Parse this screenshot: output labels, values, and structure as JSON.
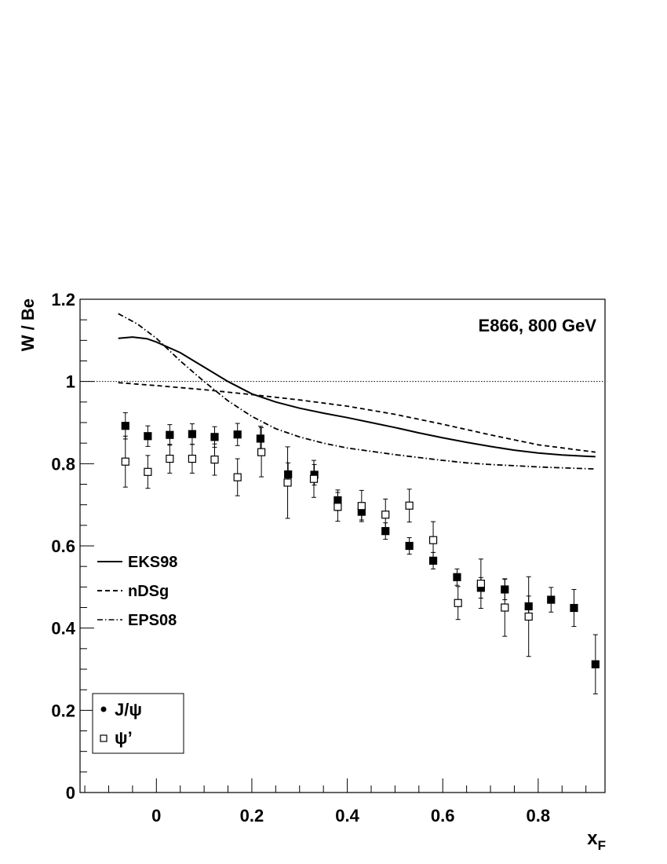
{
  "chart_data": {
    "type": "scatter",
    "title": "",
    "annotation": "E866, 800 GeV",
    "xlabel": "x",
    "xlabel_sub": "F",
    "ylabel": "W / Be",
    "xlim": [
      -0.16,
      0.94
    ],
    "ylim": [
      0,
      1.2
    ],
    "x_ticks": [
      "0",
      "0.2",
      "0.4",
      "0.6",
      "0.8"
    ],
    "y_ticks": [
      "0",
      "0.2",
      "0.4",
      "0.6",
      "0.8",
      "1",
      "1.2"
    ],
    "reference_line": 1.0,
    "grid": false,
    "series": [
      {
        "name": "J/ψ",
        "marker": "filled-square",
        "x": [
          -0.065,
          -0.018,
          0.028,
          0.075,
          0.122,
          0.17,
          0.218,
          0.276,
          0.331,
          0.38,
          0.43,
          0.48,
          0.53,
          0.58,
          0.63,
          0.68,
          0.73,
          0.78,
          0.827,
          0.875,
          0.92
        ],
        "y": [
          0.892,
          0.867,
          0.87,
          0.872,
          0.865,
          0.871,
          0.861,
          0.774,
          0.773,
          0.711,
          0.683,
          0.636,
          0.6,
          0.564,
          0.524,
          0.498,
          0.494,
          0.453,
          0.469,
          0.449,
          0.312
        ],
        "err": [
          0.032,
          0.025,
          0.025,
          0.025,
          0.025,
          0.027,
          0.03,
          0.028,
          0.025,
          0.025,
          0.02,
          0.02,
          0.02,
          0.02,
          0.02,
          0.025,
          0.025,
          0.025,
          0.03,
          0.045,
          0.072
        ]
      },
      {
        "name": "ψ’",
        "marker": "open-square",
        "x": [
          -0.065,
          -0.018,
          0.028,
          0.075,
          0.122,
          0.17,
          0.22,
          0.275,
          0.33,
          0.38,
          0.43,
          0.48,
          0.53,
          0.58,
          0.632,
          0.68,
          0.73,
          0.78
        ],
        "y": [
          0.805,
          0.78,
          0.812,
          0.812,
          0.81,
          0.767,
          0.828,
          0.754,
          0.763,
          0.695,
          0.697,
          0.676,
          0.698,
          0.614,
          0.461,
          0.508,
          0.45,
          0.428
        ],
        "err": [
          0.062,
          0.04,
          0.035,
          0.035,
          0.038,
          0.045,
          0.06,
          0.087,
          0.045,
          0.035,
          0.038,
          0.038,
          0.04,
          0.045,
          0.04,
          0.06,
          0.07,
          0.097
        ]
      }
    ],
    "curves": [
      {
        "name": "EKS98",
        "style": "solid",
        "x": [
          -0.08,
          -0.05,
          -0.02,
          0.0,
          0.05,
          0.1,
          0.15,
          0.2,
          0.25,
          0.3,
          0.35,
          0.4,
          0.45,
          0.5,
          0.55,
          0.6,
          0.65,
          0.7,
          0.75,
          0.8,
          0.85,
          0.9,
          0.92
        ],
        "y": [
          1.105,
          1.108,
          1.104,
          1.096,
          1.07,
          1.035,
          1.0,
          0.97,
          0.95,
          0.935,
          0.923,
          0.912,
          0.9,
          0.888,
          0.875,
          0.863,
          0.852,
          0.842,
          0.833,
          0.826,
          0.821,
          0.818,
          0.817
        ]
      },
      {
        "name": "nDSg",
        "style": "dashed",
        "x": [
          -0.08,
          0.0,
          0.1,
          0.2,
          0.3,
          0.4,
          0.5,
          0.6,
          0.7,
          0.8,
          0.92
        ],
        "y": [
          0.997,
          0.99,
          0.98,
          0.968,
          0.955,
          0.94,
          0.92,
          0.896,
          0.87,
          0.846,
          0.828
        ]
      },
      {
        "name": "EPS08",
        "style": "dash-dot",
        "x": [
          -0.08,
          -0.04,
          0.0,
          0.05,
          0.1,
          0.15,
          0.2,
          0.25,
          0.3,
          0.35,
          0.4,
          0.45,
          0.5,
          0.55,
          0.6,
          0.65,
          0.7,
          0.75,
          0.8,
          0.85,
          0.92
        ],
        "y": [
          1.165,
          1.14,
          1.105,
          1.05,
          1.0,
          0.953,
          0.915,
          0.885,
          0.865,
          0.85,
          0.838,
          0.83,
          0.822,
          0.815,
          0.808,
          0.802,
          0.798,
          0.795,
          0.792,
          0.79,
          0.787
        ]
      }
    ]
  },
  "legend_curves": [
    {
      "label": "EKS98"
    },
    {
      "label": "nDSg"
    },
    {
      "label": "EPS08"
    }
  ],
  "legend_markers": [
    {
      "label": "J/ψ"
    },
    {
      "label": "ψ’"
    }
  ]
}
